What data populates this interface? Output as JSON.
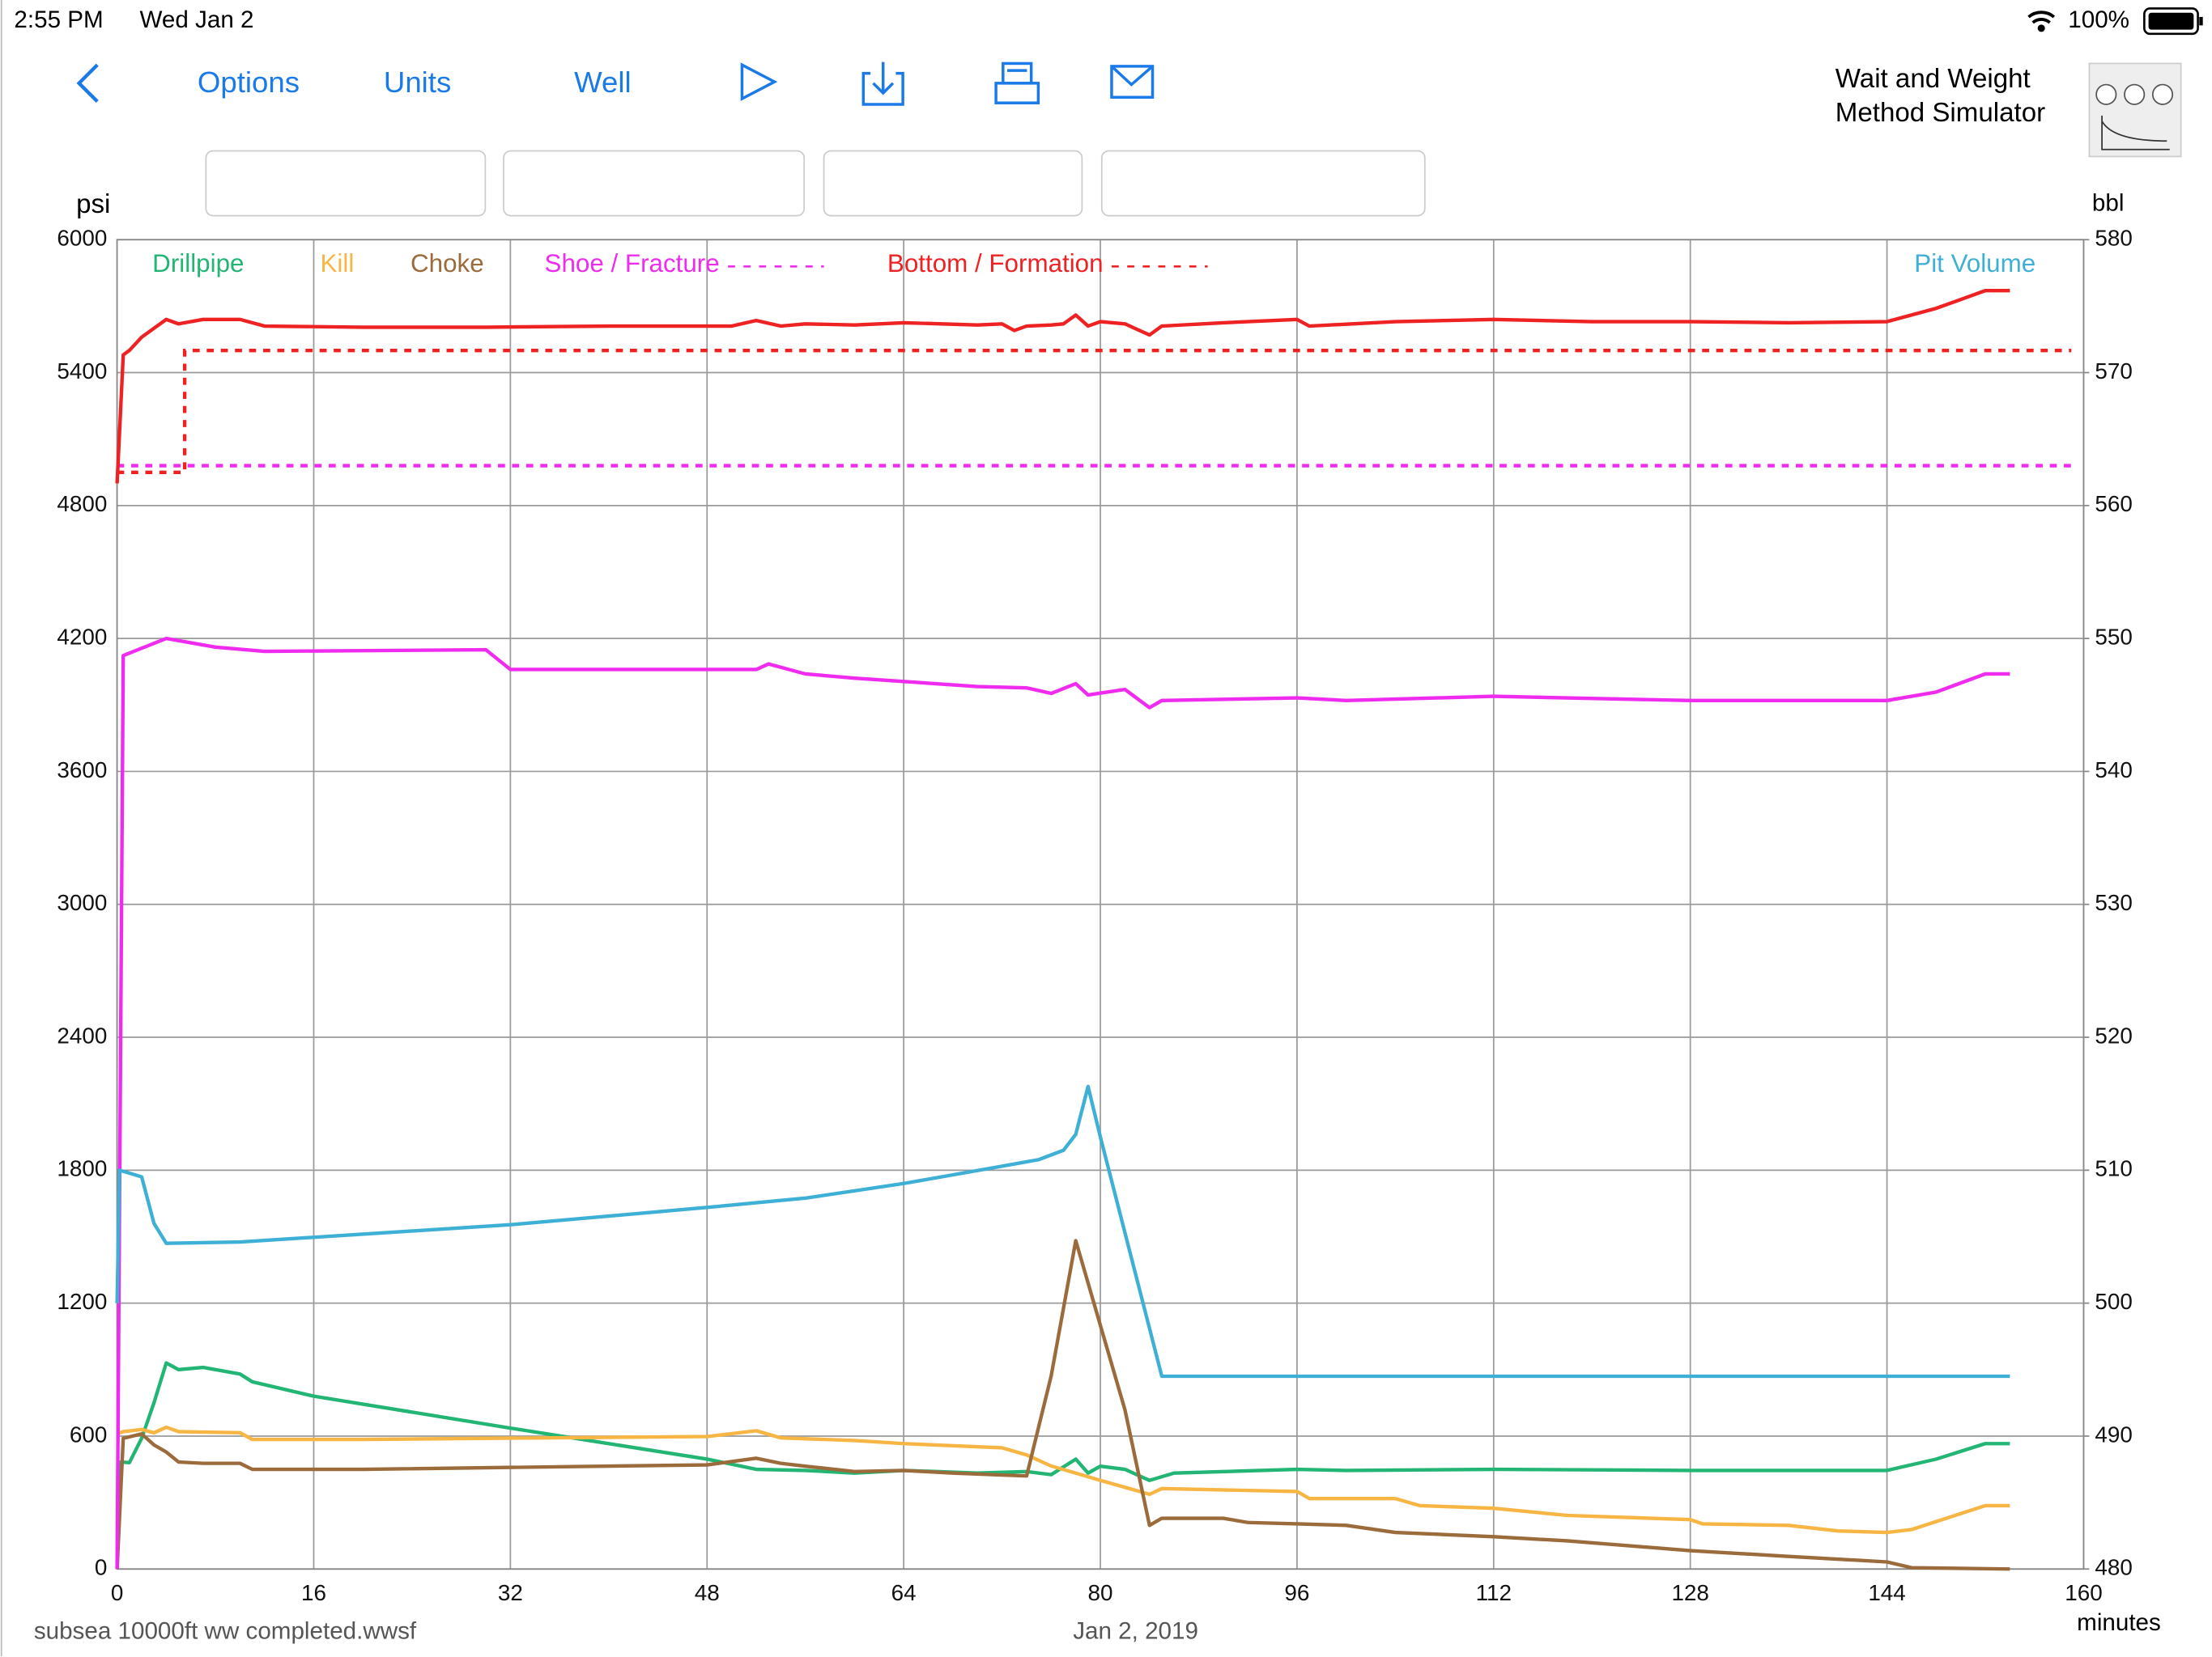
{
  "status_bar": {
    "time": "2:55 PM",
    "date": "Wed Jan 2",
    "battery": "100%"
  },
  "toolbar": {
    "options": "Options",
    "units": "Units",
    "well": "Well"
  },
  "app_title": {
    "line1": "Wait and Weight",
    "line2": "Method Simulator"
  },
  "footer": {
    "file": "subsea 10000ft ww completed.wwsf",
    "date": "Jan 2, 2019"
  },
  "chart_data": {
    "type": "line",
    "ylabel": "psi",
    "y2label": "bbl",
    "xlabel": "minutes",
    "xlim": [
      0,
      160
    ],
    "xticks": [
      0,
      16,
      32,
      48,
      64,
      80,
      96,
      112,
      128,
      144,
      160
    ],
    "ylim": [
      0,
      6000
    ],
    "yticks": [
      0,
      600,
      1200,
      1800,
      2400,
      3000,
      3600,
      4200,
      4800,
      5400,
      6000
    ],
    "y2lim": [
      480,
      580
    ],
    "y2ticks": [
      480,
      490,
      500,
      510,
      520,
      530,
      540,
      550,
      560,
      570,
      580
    ],
    "grid": true,
    "series": [
      {
        "name": "Drillpipe",
        "color": "#22b573",
        "x": [
          0,
          0.3,
          1,
          2,
          3,
          4,
          5,
          7,
          10,
          11,
          16,
          32,
          48,
          52,
          56,
          60,
          64,
          70,
          74,
          76,
          78,
          79,
          80,
          82,
          84,
          86,
          96,
          100,
          112,
          128,
          144,
          148,
          152,
          154
        ],
        "values": [
          0,
          483,
          480,
          590,
          750,
          930,
          900,
          910,
          880,
          845,
          780,
          636,
          496,
          450,
          445,
          433,
          445,
          433,
          440,
          426,
          496,
          433,
          464,
          450,
          400,
          433,
          450,
          445,
          450,
          445,
          445,
          496,
          566,
          566
        ]
      },
      {
        "name": "Kill",
        "color": "#f7b544",
        "x": [
          0,
          0.5,
          2,
          3,
          4,
          5,
          7,
          10,
          11,
          20,
          48,
          52,
          54,
          60,
          64,
          72,
          74,
          76,
          78,
          80,
          82,
          84,
          85,
          96,
          97,
          104,
          106,
          112,
          118,
          128,
          129,
          136,
          140,
          144,
          146,
          152,
          154
        ],
        "values": [
          610,
          620,
          630,
          615,
          640,
          620,
          618,
          615,
          585,
          585,
          598,
          624,
          592,
          580,
          566,
          547,
          515,
          465,
          433,
          400,
          369,
          337,
          363,
          350,
          318,
          318,
          286,
          274,
          242,
          223,
          204,
          197,
          172,
          165,
          178,
          286,
          286
        ]
      },
      {
        "name": "Choke",
        "color": "#9c6b3c",
        "x": [
          0,
          0.5,
          2,
          3,
          4,
          5,
          7,
          10,
          11,
          20,
          48,
          52,
          54,
          56,
          60,
          64,
          68,
          74,
          76,
          78,
          80,
          82,
          84,
          85,
          90,
          92,
          96,
          100,
          104,
          112,
          118,
          128,
          136,
          144,
          146,
          154
        ],
        "values": [
          0,
          590,
          610,
          560,
          528,
          483,
          477,
          477,
          450,
          450,
          470,
          500,
          477,
          464,
          440,
          445,
          433,
          420,
          872,
          1482,
          1100,
          719,
          197,
          229,
          229,
          210,
          204,
          197,
          165,
          146,
          127,
          83,
          57,
          32,
          6,
          0
        ]
      },
      {
        "name": "Shoe / Fracture",
        "color": "#ee2bee",
        "x": [
          0,
          0.5,
          4,
          8,
          12,
          30,
          32,
          52,
          53,
          56,
          60,
          70,
          74,
          76,
          78,
          79,
          82,
          84,
          85,
          96,
          100,
          112,
          128,
          144,
          148,
          152,
          154
        ],
        "values": [
          0,
          4123,
          4200,
          4161,
          4142,
          4149,
          4060,
          4060,
          4085,
          4040,
          4021,
          3983,
          3977,
          3952,
          3996,
          3945,
          3970,
          3888,
          3920,
          3932,
          3920,
          3939,
          3920,
          3920,
          3958,
          4040,
          4040
        ],
        "limit": {
          "x": [
            0,
            159
          ],
          "values": [
            4980,
            4980
          ]
        }
      },
      {
        "name": "Bottom / Formation",
        "color": "#ee2222",
        "x": [
          0,
          0.5,
          1,
          2,
          3,
          4,
          5,
          7,
          10,
          12,
          20,
          30,
          40,
          50,
          52,
          54,
          56,
          60,
          64,
          70,
          72,
          73,
          74,
          76,
          77,
          78,
          79,
          80,
          82,
          84,
          85,
          90,
          96,
          97,
          104,
          112,
          120,
          128,
          136,
          144,
          148,
          152,
          154
        ],
        "values": [
          4900,
          5480,
          5500,
          5560,
          5600,
          5640,
          5620,
          5640,
          5640,
          5610,
          5605,
          5605,
          5610,
          5610,
          5635,
          5610,
          5620,
          5615,
          5625,
          5615,
          5620,
          5590,
          5610,
          5615,
          5620,
          5660,
          5610,
          5630,
          5620,
          5570,
          5610,
          5625,
          5640,
          5610,
          5630,
          5640,
          5630,
          5630,
          5625,
          5630,
          5690,
          5770,
          5770
        ],
        "limit": {
          "x": [
            0,
            5.5,
            5.5,
            159
          ],
          "values": [
            4950,
            4950,
            5500,
            5500
          ]
        }
      },
      {
        "name": "Pit Volume",
        "color": "#3fb0d5",
        "axis": "y2",
        "x": [
          0,
          0.2,
          2,
          3,
          4,
          10,
          32,
          48,
          56,
          64,
          72,
          75,
          77,
          78,
          79,
          80,
          85,
          154
        ],
        "values": [
          500,
          510,
          509.5,
          506,
          504.5,
          504.6,
          505.9,
          507.2,
          507.9,
          509,
          510.3,
          510.8,
          511.5,
          512.7,
          516.3,
          512.5,
          494.5,
          494.5
        ]
      }
    ]
  }
}
